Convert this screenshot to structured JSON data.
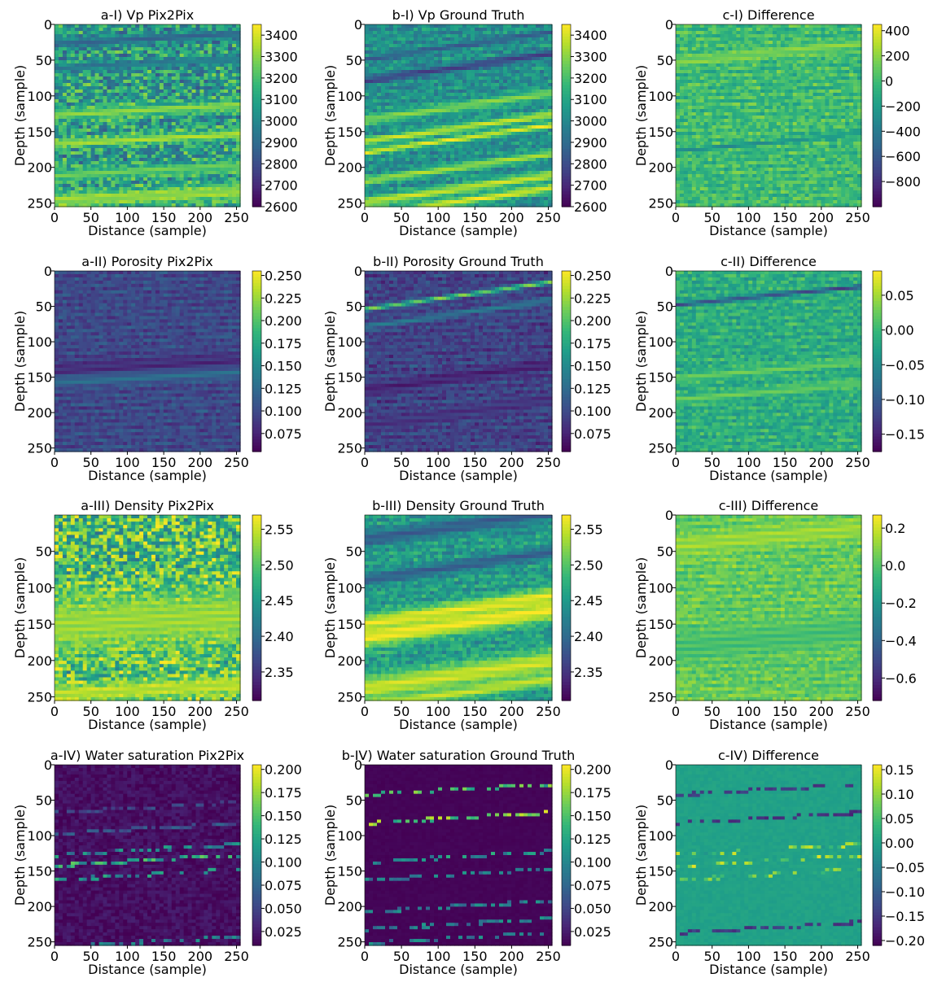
{
  "chart_data": [
    {
      "type": "heatmap",
      "title": "a-I) Vp Pix2Pix",
      "xlabel": "Distance (sample)",
      "ylabel": "Depth (sample)",
      "xticks": [
        "0",
        "50",
        "100",
        "150",
        "200",
        "250"
      ],
      "yticks": [
        "0",
        "50",
        "100",
        "150",
        "200",
        "250"
      ],
      "xlim": [
        0,
        255
      ],
      "ylim": [
        255,
        0
      ],
      "colorbar": {
        "ticks": [
          "3400",
          "3300",
          "3200",
          "3100",
          "3000",
          "2900",
          "2800",
          "2700",
          "2600"
        ],
        "range": [
          2600,
          3450
        ]
      },
      "field": {
        "base": 0.55,
        "noise": 0.25,
        "bands": [
          [
            120,
            6,
            0.8
          ],
          [
            160,
            5,
            0.85
          ],
          [
            205,
            6,
            0.75
          ],
          [
            240,
            8,
            0.85
          ],
          [
            20,
            5,
            0.35
          ],
          [
            55,
            4,
            0.4
          ]
        ],
        "slope": 0.05,
        "seed": 11
      }
    },
    {
      "type": "heatmap",
      "title": "b-I) Vp Ground Truth",
      "xlabel": "Distance (sample)",
      "ylabel": "Depth (sample)",
      "xticks": [
        "0",
        "50",
        "100",
        "150",
        "200",
        "250"
      ],
      "yticks": [
        "0",
        "50",
        "100",
        "150",
        "200",
        "250"
      ],
      "xlim": [
        0,
        255
      ],
      "ylim": [
        255,
        0
      ],
      "colorbar": {
        "ticks": [
          "3400",
          "3300",
          "3200",
          "3100",
          "3000",
          "2900",
          "2800",
          "2700",
          "2600"
        ],
        "range": [
          2600,
          3450
        ]
      },
      "field": {
        "base": 0.5,
        "noise": 0.12,
        "bands": [
          [
            60,
            4,
            0.2
          ],
          [
            115,
            5,
            0.8
          ],
          [
            145,
            4,
            0.9
          ],
          [
            160,
            3,
            0.95
          ],
          [
            200,
            4,
            0.85
          ],
          [
            230,
            5,
            0.9
          ],
          [
            248,
            4,
            0.95
          ],
          [
            30,
            3,
            0.3
          ]
        ],
        "slope": 0.15,
        "seed": 22
      }
    },
    {
      "type": "heatmap",
      "title": "c-I) Difference",
      "xlabel": "Distance (sample)",
      "ylabel": "Depth (sample)",
      "xticks": [
        "0",
        "50",
        "100",
        "150",
        "200",
        "250"
      ],
      "yticks": [
        "0",
        "50",
        "100",
        "150",
        "200",
        "250"
      ],
      "xlim": [
        0,
        255
      ],
      "ylim": [
        255,
        0
      ],
      "colorbar": {
        "ticks": [
          "400",
          "200",
          "0",
          "−200",
          "−400",
          "−600",
          "−800"
        ],
        "range": [
          -1000,
          450
        ]
      },
      "field": {
        "base": 0.68,
        "noise": 0.1,
        "bands": [
          [
            40,
            5,
            0.8
          ],
          [
            165,
            2,
            0.5
          ]
        ],
        "slope": 0.1,
        "seed": 33
      }
    },
    {
      "type": "heatmap",
      "title": "a-II) Porosity Pix2Pix",
      "xlabel": "Distance (sample)",
      "ylabel": "Depth (sample)",
      "xticks": [
        "0",
        "50",
        "100",
        "150",
        "200",
        "250"
      ],
      "yticks": [
        "0",
        "50",
        "100",
        "150",
        "200",
        "250"
      ],
      "xlim": [
        0,
        255
      ],
      "ylim": [
        255,
        0
      ],
      "colorbar": {
        "ticks": [
          "0.250",
          "0.225",
          "0.200",
          "0.175",
          "0.150",
          "0.125",
          "0.100",
          "0.075"
        ],
        "range": [
          0.055,
          0.255
        ]
      },
      "field": {
        "base": 0.22,
        "noise": 0.07,
        "bands": [
          [
            135,
            10,
            0.12
          ],
          [
            150,
            6,
            0.35
          ]
        ],
        "slope": 0.05,
        "seed": 44
      }
    },
    {
      "type": "heatmap",
      "title": "b-II) Porosity Ground Truth",
      "xlabel": "Distance (sample)",
      "ylabel": "Depth (sample)",
      "xticks": [
        "0",
        "50",
        "100",
        "150",
        "200",
        "250"
      ],
      "yticks": [
        "0",
        "50",
        "100",
        "150",
        "200",
        "250"
      ],
      "xlim": [
        0,
        255
      ],
      "ylim": [
        255,
        0
      ],
      "colorbar": {
        "ticks": [
          "0.250",
          "0.225",
          "0.200",
          "0.175",
          "0.150",
          "0.125",
          "0.100",
          "0.075"
        ],
        "range": [
          0.055,
          0.255
        ]
      },
      "field": {
        "base": 0.2,
        "noise": 0.08,
        "bands": [
          [
            35,
            2,
            0.8
          ],
          [
            60,
            3,
            0.4
          ],
          [
            150,
            6,
            0.1
          ],
          [
            200,
            6,
            0.15
          ]
        ],
        "slope": 0.15,
        "seed": 55
      }
    },
    {
      "type": "heatmap",
      "title": "c-II) Difference",
      "xlabel": "Distance (sample)",
      "ylabel": "Depth (sample)",
      "xticks": [
        "0",
        "50",
        "100",
        "150",
        "200",
        "250"
      ],
      "yticks": [
        "0",
        "50",
        "100",
        "150",
        "200",
        "250"
      ],
      "xlim": [
        0,
        255
      ],
      "ylim": [
        255,
        0
      ],
      "colorbar": {
        "ticks": [
          "0.05",
          "0.00",
          "−0.05",
          "−0.10",
          "−0.15"
        ],
        "range": [
          -0.175,
          0.085
        ]
      },
      "field": {
        "base": 0.62,
        "noise": 0.1,
        "bands": [
          [
            35,
            2,
            0.2
          ],
          [
            140,
            4,
            0.75
          ],
          [
            170,
            4,
            0.75
          ]
        ],
        "slope": 0.1,
        "seed": 66
      }
    },
    {
      "type": "heatmap",
      "title": "a-III) Density Pix2Pix",
      "xlabel": "Distance (sample)",
      "ylabel": "Depth (sample)",
      "xticks": [
        "0",
        "50",
        "100",
        "150",
        "200",
        "250"
      ],
      "yticks": [
        "50",
        "100",
        "150",
        "200",
        "250"
      ],
      "xlim": [
        0,
        255
      ],
      "ylim": [
        255,
        0
      ],
      "colorbar": {
        "ticks": [
          "2.55",
          "2.50",
          "2.45",
          "2.40",
          "2.35"
        ],
        "range": [
          2.31,
          2.57
        ]
      },
      "field": {
        "base": 0.7,
        "noise": 0.3,
        "bands": [
          [
            145,
            30,
            0.85
          ],
          [
            240,
            10,
            0.9
          ]
        ],
        "slope": 0.05,
        "seed": 77
      }
    },
    {
      "type": "heatmap",
      "title": "b-III) Density Ground Truth",
      "xlabel": "Distance (sample)",
      "ylabel": "Depth (sample)",
      "xticks": [
        "0",
        "50",
        "100",
        "150",
        "200",
        "250"
      ],
      "yticks": [
        "50",
        "100",
        "150",
        "200",
        "250"
      ],
      "xlim": [
        0,
        255
      ],
      "ylim": [
        255,
        0
      ],
      "colorbar": {
        "ticks": [
          "2.55",
          "2.50",
          "2.45",
          "2.40",
          "2.35"
        ],
        "range": [
          2.31,
          2.57
        ]
      },
      "field": {
        "base": 0.55,
        "noise": 0.12,
        "bands": [
          [
            15,
            8,
            0.3
          ],
          [
            70,
            6,
            0.3
          ],
          [
            130,
            8,
            0.95
          ],
          [
            150,
            10,
            0.98
          ],
          [
            220,
            12,
            0.92
          ],
          [
            245,
            6,
            0.9
          ]
        ],
        "slope": 0.15,
        "seed": 88
      }
    },
    {
      "type": "heatmap",
      "title": "c-III) Difference",
      "xlabel": "Distance (sample)",
      "ylabel": "Depth (sample)",
      "xticks": [
        "0",
        "50",
        "100",
        "150",
        "200",
        "250"
      ],
      "yticks": [
        "0",
        "50",
        "100",
        "150",
        "200",
        "250"
      ],
      "xlim": [
        0,
        255
      ],
      "ylim": [
        255,
        0
      ],
      "colorbar": {
        "ticks": [
          "0.2",
          "0.0",
          "−0.2",
          "−0.4",
          "−0.6"
        ],
        "range": [
          -0.72,
          0.27
        ]
      },
      "field": {
        "base": 0.76,
        "noise": 0.08,
        "bands": [
          [
            30,
            10,
            0.85
          ],
          [
            170,
            15,
            0.7
          ]
        ],
        "slope": 0.1,
        "seed": 99
      }
    },
    {
      "type": "heatmap",
      "title": "a-IV) Water saturation Pix2Pix",
      "xlabel": "Distance (sample)",
      "ylabel": "Depth (sample)",
      "xticks": [
        "0",
        "50",
        "100",
        "150",
        "200",
        "250"
      ],
      "yticks": [
        "0",
        "50",
        "100",
        "150",
        "200",
        "250"
      ],
      "xlim": [
        0,
        255
      ],
      "ylim": [
        255,
        0
      ],
      "colorbar": {
        "ticks": [
          "0.200",
          "0.175",
          "0.150",
          "0.125",
          "0.100",
          "0.075",
          "0.050",
          "0.025"
        ],
        "range": [
          0.01,
          0.205
        ]
      },
      "field": {
        "base": 0.04,
        "noise": 0.05,
        "streaks": [
          [
            120,
            0.55
          ],
          [
            135,
            0.7
          ],
          [
            155,
            0.6
          ],
          [
            250,
            0.5
          ],
          [
            90,
            0.3
          ],
          [
            60,
            0.25
          ]
        ],
        "seed": 101
      }
    },
    {
      "type": "heatmap",
      "title": "b-IV) Water saturation Ground Truth",
      "xlabel": "Distance (sample)",
      "ylabel": "Depth (sample)",
      "xticks": [
        "0",
        "50",
        "100",
        "150",
        "200",
        "250"
      ],
      "yticks": [
        "0",
        "50",
        "100",
        "150",
        "200",
        "250"
      ],
      "xlim": [
        0,
        255
      ],
      "ylim": [
        255,
        0
      ],
      "colorbar": {
        "ticks": [
          "0.200",
          "0.175",
          "0.150",
          "0.125",
          "0.100",
          "0.075",
          "0.050",
          "0.025"
        ],
        "range": [
          0.01,
          0.205
        ]
      },
      "field": {
        "base": 0.01,
        "noise": 0.01,
        "streaks": [
          [
            35,
            0.8
          ],
          [
            75,
            0.9
          ],
          [
            130,
            0.6
          ],
          [
            155,
            0.5
          ],
          [
            200,
            0.5
          ],
          [
            225,
            0.5
          ],
          [
            245,
            0.5
          ]
        ],
        "seed": 202
      }
    },
    {
      "type": "heatmap",
      "title": "c-IV) Difference",
      "xlabel": "Distance (sample)",
      "ylabel": "Depth (sample)",
      "xticks": [
        "0",
        "50",
        "100",
        "150",
        "200",
        "250"
      ],
      "yticks": [
        "0",
        "50",
        "100",
        "150",
        "200",
        "250"
      ],
      "xlim": [
        0,
        255
      ],
      "ylim": [
        255,
        0
      ],
      "colorbar": {
        "ticks": [
          "0.15",
          "0.10",
          "0.05",
          "0.00",
          "−0.05",
          "−0.10",
          "−0.15",
          "−0.20"
        ],
        "range": [
          -0.21,
          0.16
        ]
      },
      "field": {
        "base": 0.57,
        "noise": 0.02,
        "streaks": [
          [
            120,
            0.85
          ],
          [
            135,
            0.9
          ],
          [
            155,
            0.85
          ],
          [
            75,
            0.15
          ],
          [
            35,
            0.2
          ],
          [
            230,
            0.2
          ]
        ],
        "seed": 303
      }
    }
  ]
}
